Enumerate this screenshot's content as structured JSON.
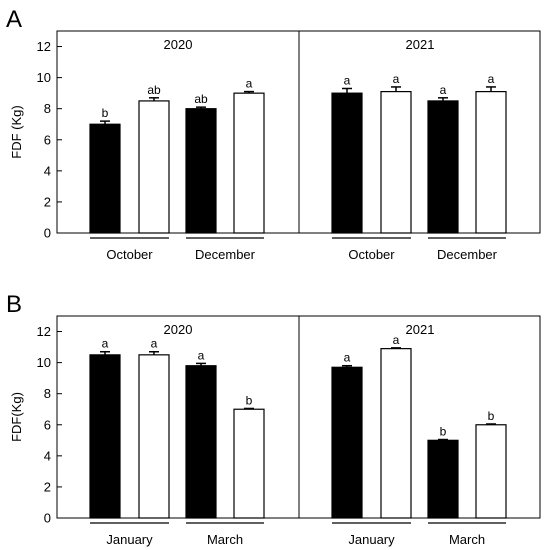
{
  "chart_data": [
    {
      "type": "bar",
      "panel_label": "A",
      "ylabel": "FDF (Kg)",
      "ylim": [
        0,
        13
      ],
      "yticks": [
        0,
        2,
        4,
        6,
        8,
        10,
        12
      ],
      "bar_colors": [
        "#000000",
        "#ffffff"
      ],
      "subplots": [
        {
          "title": "2020",
          "groups": [
            {
              "label": "October",
              "values": [
                7.0,
                8.5
              ],
              "errors": [
                0.2,
                0.2
              ],
              "letters": [
                "b",
                "ab"
              ]
            },
            {
              "label": "December",
              "values": [
                8.0,
                9.0
              ],
              "errors": [
                0.1,
                0.1
              ],
              "letters": [
                "ab",
                "a"
              ]
            }
          ]
        },
        {
          "title": "2021",
          "groups": [
            {
              "label": "October",
              "values": [
                9.0,
                9.1
              ],
              "errors": [
                0.3,
                0.3
              ],
              "letters": [
                "a",
                "a"
              ]
            },
            {
              "label": "December",
              "values": [
                8.5,
                9.1
              ],
              "errors": [
                0.2,
                0.3
              ],
              "letters": [
                "a",
                "a"
              ]
            }
          ]
        }
      ]
    },
    {
      "type": "bar",
      "panel_label": "B",
      "ylabel": "FDF(Kg)",
      "ylim": [
        0,
        13
      ],
      "yticks": [
        0,
        2,
        4,
        6,
        8,
        10,
        12
      ],
      "bar_colors": [
        "#000000",
        "#ffffff"
      ],
      "subplots": [
        {
          "title": "2020",
          "groups": [
            {
              "label": "January",
              "values": [
                10.5,
                10.5
              ],
              "errors": [
                0.2,
                0.2
              ],
              "letters": [
                "a",
                "a"
              ]
            },
            {
              "label": "March",
              "values": [
                9.8,
                7.0
              ],
              "errors": [
                0.15,
                0.05
              ],
              "letters": [
                "a",
                "b"
              ]
            }
          ]
        },
        {
          "title": "2021",
          "groups": [
            {
              "label": "January",
              "values": [
                9.7,
                10.9
              ],
              "errors": [
                0.1,
                0.05
              ],
              "letters": [
                "a",
                "a"
              ]
            },
            {
              "label": "March",
              "values": [
                5.0,
                6.0
              ],
              "errors": [
                0.05,
                0.05
              ],
              "letters": [
                "b",
                "b"
              ]
            }
          ]
        }
      ]
    }
  ]
}
